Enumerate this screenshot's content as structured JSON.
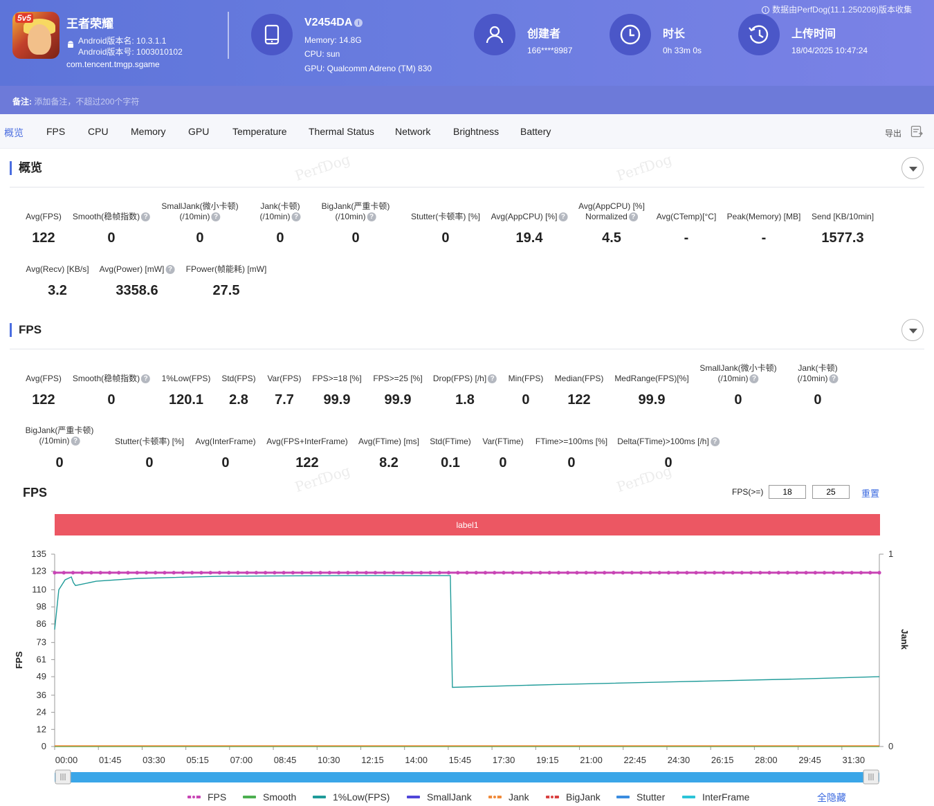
{
  "header": {
    "app_name": "王者荣耀",
    "android_version_name": "Android版本名: 10.3.1.1",
    "android_version_code": "Android版本号: 1003010102",
    "package": "com.tencent.tmgp.sgame",
    "device_name": "V2454DA",
    "memory": "Memory: 14.8G",
    "cpu": "CPU: sun",
    "gpu": "GPU: Qualcomm Adreno (TM) 830",
    "creator_label": "创建者",
    "creator_value": "166****8987",
    "duration_label": "时长",
    "duration_value": "0h 33m 0s",
    "upload_label": "上传时间",
    "upload_value": "18/04/2025 10:47:24",
    "data_source_note": "数据由PerfDog(11.1.250208)版本收集",
    "app_icon_badge": "5v5"
  },
  "remark": {
    "label": "备注:",
    "placeholder": "添加备注，不超过200个字符"
  },
  "tabs": [
    "概览",
    "FPS",
    "CPU",
    "Memory",
    "GPU",
    "Temperature",
    "Thermal Status",
    "Network",
    "Brightness",
    "Battery"
  ],
  "export_label": "导出",
  "overview": {
    "title": "概览",
    "metrics": [
      {
        "label": "Avg(FPS)",
        "value": "122"
      },
      {
        "label": "Smooth(稳帧指数)",
        "value": "0"
      },
      {
        "label": "SmallJank(微小卡顿)",
        "label2": "(/10min)",
        "value": "0"
      },
      {
        "label": "Jank(卡顿)",
        "label2": "(/10min)",
        "value": "0"
      },
      {
        "label": "BigJank(严重卡顿)",
        "label2": "(/10min)",
        "value": "0"
      },
      {
        "label": "Stutter(卡顿率) [%]",
        "value": "0"
      },
      {
        "label": "Avg(AppCPU) [%]",
        "value": "19.4"
      },
      {
        "label": "Avg(AppCPU) [%]",
        "label2": "Normalized",
        "value": "4.5"
      },
      {
        "label": "Avg(CTemp)[°C]",
        "value": "-"
      },
      {
        "label": "Peak(Memory) [MB]",
        "value": "-"
      },
      {
        "label": "Send [KB/10min]",
        "value": "1577.3"
      },
      {
        "label": "Avg(Recv) [KB/s]",
        "value": "3.2"
      },
      {
        "label": "Avg(Power) [mW]",
        "value": "3358.6"
      },
      {
        "label": "FPower(帧能耗) [mW]",
        "value": "27.5"
      }
    ]
  },
  "fps_section": {
    "title": "FPS",
    "metrics": [
      {
        "label": "Avg(FPS)",
        "value": "122"
      },
      {
        "label": "Smooth(稳帧指数)",
        "value": "0"
      },
      {
        "label": "1%Low(FPS)",
        "value": "120.1"
      },
      {
        "label": "Std(FPS)",
        "value": "2.8"
      },
      {
        "label": "Var(FPS)",
        "value": "7.7"
      },
      {
        "label": "FPS>=18 [%]",
        "value": "99.9"
      },
      {
        "label": "FPS>=25 [%]",
        "value": "99.9"
      },
      {
        "label": "Drop(FPS) [/h]",
        "value": "1.8"
      },
      {
        "label": "Min(FPS)",
        "value": "0"
      },
      {
        "label": "Median(FPS)",
        "value": "122"
      },
      {
        "label": "MedRange(FPS)[%]",
        "value": "99.9"
      },
      {
        "label": "SmallJank(微小卡顿)",
        "label2": "(/10min)",
        "value": "0"
      },
      {
        "label": "Jank(卡顿)",
        "label2": "(/10min)",
        "value": "0"
      },
      {
        "label": "BigJank(严重卡顿)",
        "label2": "(/10min)",
        "value": "0"
      },
      {
        "label": "Stutter(卡顿率) [%]",
        "value": "0"
      },
      {
        "label": "Avg(InterFrame)",
        "value": "0"
      },
      {
        "label": "Avg(FPS+InterFrame)",
        "value": "122"
      },
      {
        "label": "Avg(FTime) [ms]",
        "value": "8.2"
      },
      {
        "label": "Std(FTime)",
        "value": "0.1"
      },
      {
        "label": "Var(FTime)",
        "value": "0"
      },
      {
        "label": "FTime>=100ms [%]",
        "value": "0"
      },
      {
        "label": "Delta(FTime)>100ms [/h]",
        "value": "0"
      }
    ]
  },
  "watermark_text": "PerfDog",
  "chart_controls": {
    "title": "FPS",
    "filter_label": "FPS(>=)",
    "threshold_1": "18",
    "threshold_2": "25",
    "reset_label": "重置",
    "label_bar": "label1",
    "hide_all_label": "全隐藏"
  },
  "chart_data": {
    "type": "line",
    "title": "FPS",
    "ylabel": "FPS",
    "y2label": "Jank",
    "ylim": [
      0,
      135
    ],
    "y_ticks": [
      0,
      12,
      24,
      36,
      49,
      61,
      73,
      86,
      98,
      110,
      123,
      135
    ],
    "y2_ticks": [
      0,
      1
    ],
    "x_ticks": [
      "00:00",
      "01:45",
      "03:30",
      "05:15",
      "07:00",
      "08:45",
      "10:30",
      "12:15",
      "14:00",
      "15:45",
      "17:30",
      "19:15",
      "21:00",
      "22:45",
      "24:30",
      "26:15",
      "28:00",
      "29:45",
      "31:30"
    ],
    "x_range_seconds": [
      0,
      1980
    ],
    "grid": false,
    "legend_position": "bottom",
    "series": [
      {
        "name": "FPS",
        "color": "#c845b5",
        "points": [
          [
            0,
            122
          ],
          [
            300,
            122
          ],
          [
            600,
            122
          ],
          [
            900,
            122
          ],
          [
            1200,
            122
          ],
          [
            1500,
            122
          ],
          [
            1800,
            122
          ],
          [
            1980,
            122
          ]
        ]
      },
      {
        "name": "Smooth",
        "color": "#4caf50",
        "points": [
          [
            0,
            0
          ],
          [
            1980,
            0
          ]
        ]
      },
      {
        "name": "1%Low(FPS)",
        "color": "#1f9b99",
        "points": [
          [
            0,
            82
          ],
          [
            10,
            110
          ],
          [
            25,
            117
          ],
          [
            40,
            119
          ],
          [
            45,
            115
          ],
          [
            50,
            113
          ],
          [
            100,
            116
          ],
          [
            200,
            118
          ],
          [
            400,
            119.5
          ],
          [
            700,
            120
          ],
          [
            950,
            120
          ],
          [
            955,
            41.5
          ],
          [
            1200,
            43.5
          ],
          [
            1500,
            45.5
          ],
          [
            1800,
            47.5
          ],
          [
            1980,
            49
          ]
        ]
      },
      {
        "name": "SmallJank",
        "color": "#5046d9",
        "points": []
      },
      {
        "name": "Jank",
        "color": "#f08a3a",
        "points": [
          [
            0,
            0.5
          ],
          [
            1980,
            0.5
          ]
        ]
      },
      {
        "name": "BigJank",
        "color": "#d94040",
        "points": []
      },
      {
        "name": "Stutter",
        "color": "#3b8de0",
        "points": []
      },
      {
        "name": "InterFrame",
        "color": "#2bc4d8",
        "points": []
      }
    ]
  }
}
